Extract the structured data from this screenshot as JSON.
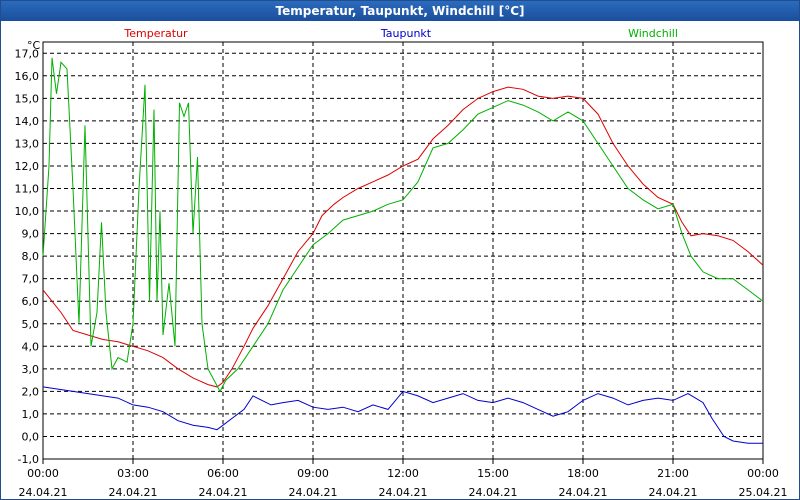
{
  "window": {
    "title": "Temperatur, Taupunkt, Windchill [°C]"
  },
  "chart_data": {
    "type": "line",
    "title": "Temperatur, Taupunkt, Windchill [°C]",
    "ylabel": "°C",
    "xlabel": "",
    "ylim": [
      -1.0,
      17.5
    ],
    "xlim": [
      0,
      24
    ],
    "grid": true,
    "yticks": [
      -1.0,
      0.0,
      1.0,
      2.0,
      3.0,
      4.0,
      5.0,
      6.0,
      7.0,
      8.0,
      9.0,
      10.0,
      11.0,
      12.0,
      13.0,
      14.0,
      15.0,
      16.0,
      17.0
    ],
    "ytick_labels": [
      "-1,0",
      "0,0",
      "1,0",
      "2,0",
      "3,0",
      "4,0",
      "5,0",
      "6,0",
      "7,0",
      "8,0",
      "9,0",
      "10,0",
      "11,0",
      "12,0",
      "13,0",
      "14,0",
      "15,0",
      "16,0",
      "17,0"
    ],
    "xticks": [
      {
        "h": 0,
        "time": "00:00",
        "date": "24.04.21"
      },
      {
        "h": 3,
        "time": "03:00",
        "date": "24.04.21"
      },
      {
        "h": 6,
        "time": "06:00",
        "date": "24.04.21"
      },
      {
        "h": 9,
        "time": "09:00",
        "date": "24.04.21"
      },
      {
        "h": 12,
        "time": "12:00",
        "date": "24.04.21"
      },
      {
        "h": 15,
        "time": "15:00",
        "date": "24.04.21"
      },
      {
        "h": 18,
        "time": "18:00",
        "date": "24.04.21"
      },
      {
        "h": 21,
        "time": "21:00",
        "date": "24.04.21"
      },
      {
        "h": 24,
        "time": "00:00",
        "date": "25.04.21"
      }
    ],
    "series": [
      {
        "name": "Temperatur",
        "color": "#dd0000",
        "points": [
          [
            0,
            6.5
          ],
          [
            0.3,
            6.0
          ],
          [
            0.6,
            5.5
          ],
          [
            1.0,
            4.7
          ],
          [
            1.5,
            4.5
          ],
          [
            2.0,
            4.3
          ],
          [
            2.5,
            4.2
          ],
          [
            3.0,
            4.0
          ],
          [
            3.5,
            3.8
          ],
          [
            4.0,
            3.5
          ],
          [
            4.5,
            3.0
          ],
          [
            5.0,
            2.6
          ],
          [
            5.5,
            2.3
          ],
          [
            5.8,
            2.2
          ],
          [
            6.0,
            2.4
          ],
          [
            6.3,
            3.0
          ],
          [
            6.7,
            4.0
          ],
          [
            7.0,
            4.8
          ],
          [
            7.5,
            5.8
          ],
          [
            8.0,
            7.0
          ],
          [
            8.5,
            8.2
          ],
          [
            9.0,
            9.0
          ],
          [
            9.3,
            9.8
          ],
          [
            9.7,
            10.3
          ],
          [
            10.0,
            10.6
          ],
          [
            10.5,
            11.0
          ],
          [
            11.0,
            11.3
          ],
          [
            11.5,
            11.6
          ],
          [
            12.0,
            12.0
          ],
          [
            12.5,
            12.3
          ],
          [
            13.0,
            13.2
          ],
          [
            13.5,
            13.8
          ],
          [
            14.0,
            14.5
          ],
          [
            14.5,
            15.0
          ],
          [
            15.0,
            15.3
          ],
          [
            15.5,
            15.5
          ],
          [
            16.0,
            15.4
          ],
          [
            16.5,
            15.1
          ],
          [
            17.0,
            15.0
          ],
          [
            17.5,
            15.1
          ],
          [
            18.0,
            15.0
          ],
          [
            18.5,
            14.3
          ],
          [
            19.0,
            13.0
          ],
          [
            19.5,
            12.0
          ],
          [
            20.0,
            11.2
          ],
          [
            20.5,
            10.6
          ],
          [
            21.0,
            10.3
          ],
          [
            21.3,
            9.5
          ],
          [
            21.6,
            8.9
          ],
          [
            22.0,
            9.0
          ],
          [
            22.5,
            8.9
          ],
          [
            23.0,
            8.7
          ],
          [
            23.5,
            8.2
          ],
          [
            24.0,
            7.6
          ]
        ]
      },
      {
        "name": "Taupunkt",
        "color": "#0000cc",
        "points": [
          [
            0,
            2.2
          ],
          [
            0.5,
            2.1
          ],
          [
            1.0,
            2.0
          ],
          [
            1.5,
            1.9
          ],
          [
            2.0,
            1.8
          ],
          [
            2.5,
            1.7
          ],
          [
            3.0,
            1.4
          ],
          [
            3.5,
            1.3
          ],
          [
            4.0,
            1.1
          ],
          [
            4.5,
            0.7
          ],
          [
            5.0,
            0.5
          ],
          [
            5.5,
            0.4
          ],
          [
            5.8,
            0.3
          ],
          [
            6.0,
            0.5
          ],
          [
            6.3,
            0.8
          ],
          [
            6.7,
            1.2
          ],
          [
            7.0,
            1.8
          ],
          [
            7.3,
            1.6
          ],
          [
            7.6,
            1.4
          ],
          [
            8.0,
            1.5
          ],
          [
            8.5,
            1.6
          ],
          [
            9.0,
            1.3
          ],
          [
            9.5,
            1.2
          ],
          [
            10.0,
            1.3
          ],
          [
            10.5,
            1.1
          ],
          [
            11.0,
            1.4
          ],
          [
            11.5,
            1.2
          ],
          [
            12.0,
            2.0
          ],
          [
            12.5,
            1.8
          ],
          [
            13.0,
            1.5
          ],
          [
            13.5,
            1.7
          ],
          [
            14.0,
            1.9
          ],
          [
            14.5,
            1.6
          ],
          [
            15.0,
            1.5
          ],
          [
            15.5,
            1.7
          ],
          [
            16.0,
            1.5
          ],
          [
            16.5,
            1.2
          ],
          [
            17.0,
            0.9
          ],
          [
            17.5,
            1.1
          ],
          [
            18.0,
            1.6
          ],
          [
            18.5,
            1.9
          ],
          [
            19.0,
            1.7
          ],
          [
            19.5,
            1.4
          ],
          [
            20.0,
            1.6
          ],
          [
            20.5,
            1.7
          ],
          [
            21.0,
            1.6
          ],
          [
            21.5,
            1.9
          ],
          [
            22.0,
            1.5
          ],
          [
            22.3,
            0.8
          ],
          [
            22.7,
            0.0
          ],
          [
            23.0,
            -0.2
          ],
          [
            23.5,
            -0.3
          ],
          [
            24.0,
            -0.3
          ]
        ]
      },
      {
        "name": "Windchill",
        "color": "#00b000",
        "points": [
          [
            0,
            8.0
          ],
          [
            0.2,
            12.0
          ],
          [
            0.3,
            16.8
          ],
          [
            0.45,
            15.2
          ],
          [
            0.6,
            16.6
          ],
          [
            0.8,
            16.3
          ],
          [
            1.0,
            11.0
          ],
          [
            1.2,
            5.0
          ],
          [
            1.4,
            13.8
          ],
          [
            1.6,
            4.0
          ],
          [
            1.8,
            5.5
          ],
          [
            1.95,
            9.5
          ],
          [
            2.1,
            5.5
          ],
          [
            2.3,
            3.0
          ],
          [
            2.5,
            3.5
          ],
          [
            2.8,
            3.3
          ],
          [
            3.0,
            5.0
          ],
          [
            3.2,
            11.0
          ],
          [
            3.4,
            15.6
          ],
          [
            3.55,
            6.0
          ],
          [
            3.7,
            14.5
          ],
          [
            3.8,
            6.0
          ],
          [
            3.9,
            10.0
          ],
          [
            4.0,
            4.5
          ],
          [
            4.2,
            6.8
          ],
          [
            4.4,
            4.0
          ],
          [
            4.55,
            14.8
          ],
          [
            4.7,
            14.2
          ],
          [
            4.85,
            14.8
          ],
          [
            5.0,
            9.0
          ],
          [
            5.15,
            12.4
          ],
          [
            5.3,
            5.0
          ],
          [
            5.5,
            3.0
          ],
          [
            5.7,
            2.5
          ],
          [
            5.9,
            2.0
          ],
          [
            6.1,
            2.5
          ],
          [
            6.5,
            3.0
          ],
          [
            7.0,
            4.0
          ],
          [
            7.5,
            5.0
          ],
          [
            8.0,
            6.5
          ],
          [
            8.5,
            7.5
          ],
          [
            9.0,
            8.5
          ],
          [
            9.5,
            9.0
          ],
          [
            10.0,
            9.6
          ],
          [
            10.5,
            9.8
          ],
          [
            11.0,
            10.0
          ],
          [
            11.5,
            10.3
          ],
          [
            12.0,
            10.5
          ],
          [
            12.5,
            11.3
          ],
          [
            13.0,
            12.8
          ],
          [
            13.5,
            13.0
          ],
          [
            14.0,
            13.6
          ],
          [
            14.5,
            14.3
          ],
          [
            15.0,
            14.6
          ],
          [
            15.5,
            14.9
          ],
          [
            16.0,
            14.7
          ],
          [
            16.5,
            14.4
          ],
          [
            17.0,
            14.0
          ],
          [
            17.5,
            14.4
          ],
          [
            18.0,
            14.0
          ],
          [
            18.5,
            13.0
          ],
          [
            19.0,
            12.0
          ],
          [
            19.5,
            11.0
          ],
          [
            20.0,
            10.5
          ],
          [
            20.5,
            10.1
          ],
          [
            21.0,
            10.3
          ],
          [
            21.3,
            9.0
          ],
          [
            21.6,
            8.0
          ],
          [
            22.0,
            7.3
          ],
          [
            22.5,
            7.0
          ],
          [
            23.0,
            7.0
          ],
          [
            23.5,
            6.5
          ],
          [
            24.0,
            6.0
          ]
        ]
      }
    ]
  }
}
